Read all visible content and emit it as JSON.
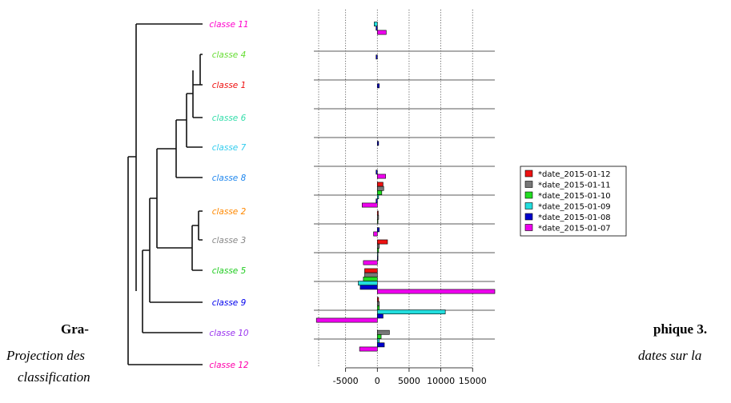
{
  "chart_data": {
    "type": "bar",
    "orientation": "horizontal",
    "grouping": "dendrogram-ordered classes",
    "categories": [
      "classe 11",
      "classe 4",
      "classe 1",
      "classe 6",
      "classe 7",
      "classe 8",
      "classe 2",
      "classe 3",
      "classe 5",
      "classe 9",
      "classe 10",
      "classe 12"
    ],
    "category_colors": [
      "#ff00cc",
      "#66dd33",
      "#ee1111",
      "#33ddaa",
      "#33ccee",
      "#2288ee",
      "#ff8800",
      "#888888",
      "#22cc22",
      "#0000ee",
      "#9933ee",
      "#ff00aa"
    ],
    "series": [
      {
        "name": "*date_2015-01-12",
        "color": "#ee1111",
        "values": [
          0,
          0,
          0,
          0,
          0,
          0,
          900,
          150,
          1600,
          -2000,
          200,
          0
        ]
      },
      {
        "name": "*date_2015-01-11",
        "color": "#777777",
        "values": [
          0,
          0,
          0,
          0,
          0,
          0,
          1000,
          200,
          300,
          -2000,
          300,
          1900
        ]
      },
      {
        "name": "*date_2015-01-10",
        "color": "#22dd22",
        "values": [
          0,
          0,
          0,
          0,
          0,
          0,
          700,
          100,
          200,
          -2200,
          300,
          600
        ]
      },
      {
        "name": "*date_2015-01-09",
        "color": "#22dddd",
        "values": [
          -500,
          0,
          0,
          0,
          0,
          0,
          200,
          0,
          100,
          -3000,
          10700,
          300
        ]
      },
      {
        "name": "*date_2015-01-08",
        "color": "#0000cc",
        "values": [
          -200,
          -200,
          300,
          0,
          200,
          -200,
          -200,
          300,
          100,
          -2700,
          900,
          1100
        ]
      },
      {
        "name": "*date_2015-01-07",
        "color": "#ee00ee",
        "values": [
          1400,
          0,
          0,
          0,
          0,
          1300,
          -2400,
          -600,
          -2200,
          18500,
          -9600,
          -2800
        ]
      }
    ],
    "xlim": [
      -10000,
      18500
    ],
    "xticks": [
      "-5000",
      "0",
      "5000",
      "10000",
      "15000"
    ],
    "xtick_values": [
      -5000,
      0,
      5000,
      10000,
      15000
    ],
    "grid": "vertical dotted"
  },
  "caption": {
    "left_bold": "Gra-",
    "right_bold": "phique 3.",
    "left_line2": "Projection des",
    "right_line2": "dates sur la",
    "left_line3": "classification"
  }
}
